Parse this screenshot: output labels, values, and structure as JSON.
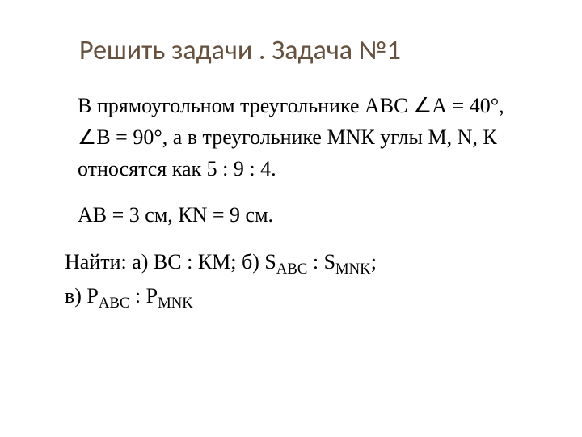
{
  "title": "Решить задачи . Задача №1",
  "problem": {
    "p1": "В прямоугольном треугольнике АВС ∠А = 40°, ∠В = 90°, а в треугольнике МNК углы М, N, К относятся как 5  : 9 : 4.",
    "p2": "АВ = 3 см, КN = 9 см."
  },
  "find": {
    "line1_prefix": "Найти: а) ВС  :  КМ; б) S",
    "sub_abc": "ABC",
    "colon_s": " : S",
    "sub_mnk": "MNK",
    "semicolon": ";",
    "line2_prefix": " в) Р",
    "colon_p": " : Р"
  },
  "colors": {
    "title": "#65513e",
    "text": "#000000",
    "background": "#ffffff"
  },
  "fontsizes": {
    "title_pt": 26,
    "body_pt": 20
  }
}
